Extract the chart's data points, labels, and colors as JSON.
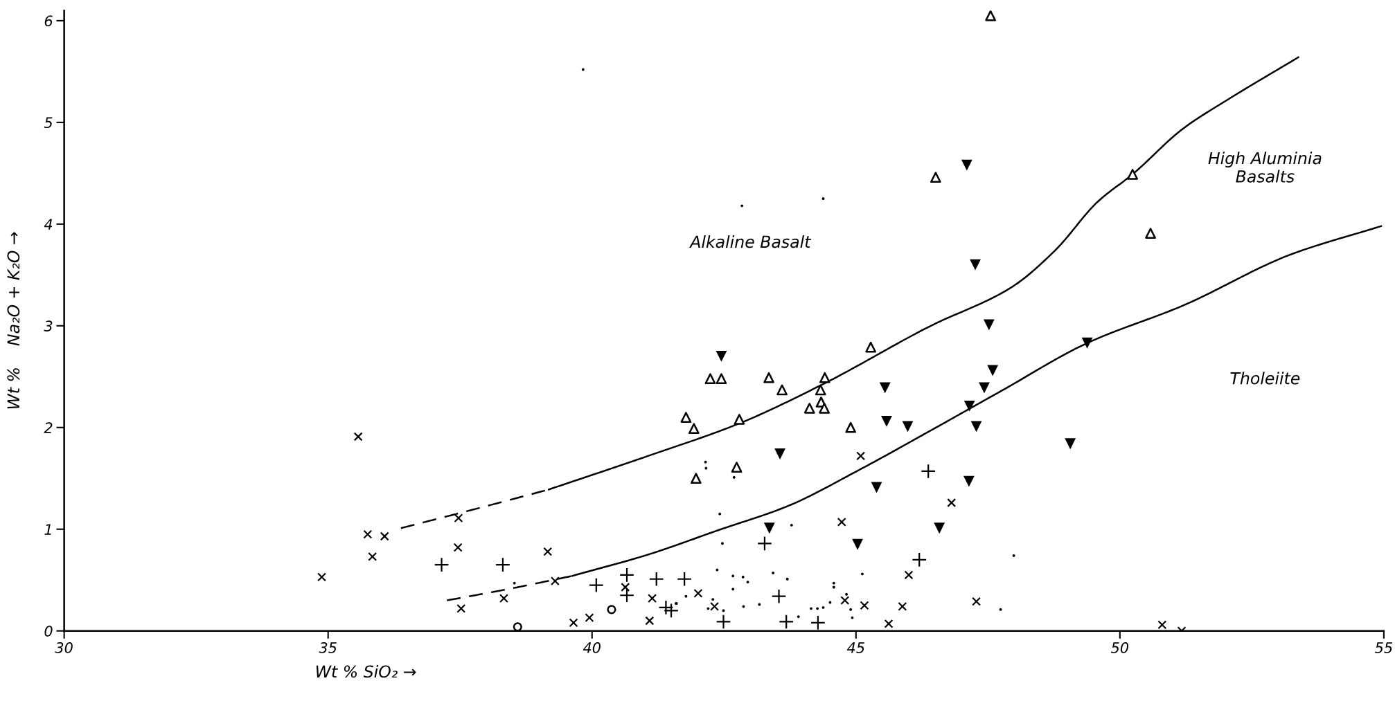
{
  "chart_data": {
    "type": "scatter",
    "xlabel": "Wt % SiO₂ →",
    "ylabel": "Wt %    Na₂O + K₂O →",
    "xlim": [
      30,
      55
    ],
    "ylim": [
      0,
      6.1
    ],
    "xticks": [
      30,
      35,
      40,
      45,
      50,
      55
    ],
    "yticks": [
      0,
      1,
      2,
      3,
      4,
      5,
      6
    ],
    "grid": false,
    "legend": false,
    "annotations": [
      "Alkaline Basalt",
      "High Aluminia\nBasalts",
      "Tholeiite"
    ],
    "series": [
      {
        "marker": "x",
        "color": "#000000",
        "x": [
          34.88,
          35.57,
          35.75,
          36.07,
          35.84,
          37.47,
          37.46,
          39.16,
          39.3,
          37.52,
          38.33,
          40.63,
          39.65,
          39.95,
          41.14,
          41.09,
          45.09,
          44.73,
          46.81,
          46.0,
          42.01,
          42.32,
          44.79,
          45.16,
          45.88,
          45.62,
          47.28,
          50.8,
          51.17
        ],
        "values": [
          0.53,
          1.91,
          0.95,
          0.93,
          0.73,
          1.11,
          0.82,
          0.78,
          0.49,
          0.22,
          0.32,
          0.43,
          0.08,
          0.13,
          0.32,
          0.1,
          1.72,
          1.07,
          1.26,
          0.55,
          0.37,
          0.24,
          0.3,
          0.25,
          0.24,
          0.07,
          0.29,
          0.06,
          0.0
        ]
      },
      {
        "marker": "cross",
        "color": "#000000",
        "x": [
          37.15,
          38.31,
          40.08,
          40.66,
          40.66,
          41.22,
          41.4,
          41.5,
          43.27,
          46.37,
          46.2,
          41.75,
          43.54,
          42.49,
          43.68,
          44.28
        ],
        "values": [
          0.65,
          0.65,
          0.45,
          0.55,
          0.35,
          0.51,
          0.23,
          0.2,
          0.86,
          1.57,
          0.7,
          0.51,
          0.34,
          0.09,
          0.09,
          0.08
        ]
      },
      {
        "marker": "point",
        "color": "#000000",
        "x": [
          38.53,
          41.6,
          42.15,
          42.16,
          42.69,
          42.42,
          42.47,
          43.78,
          42.37,
          42.67,
          42.86,
          42.95,
          43.43,
          43.7,
          42.67,
          41.78,
          41.59,
          42.29,
          42.2,
          42.49,
          42.87,
          43.17,
          43.91,
          44.15,
          44.27,
          44.38,
          44.51,
          44.58,
          44.58,
          44.82,
          44.9,
          44.93,
          45.12,
          39.83,
          42.84,
          44.38,
          47.99,
          47.74
        ],
        "values": [
          0.47,
          0.27,
          1.66,
          1.6,
          1.51,
          1.15,
          0.86,
          1.04,
          0.6,
          0.54,
          0.53,
          0.48,
          0.57,
          0.51,
          0.41,
          0.34,
          0.27,
          0.31,
          0.22,
          0.2,
          0.24,
          0.26,
          0.14,
          0.22,
          0.22,
          0.23,
          0.28,
          0.47,
          0.43,
          0.36,
          0.21,
          0.13,
          0.56,
          5.52,
          4.18,
          4.25,
          0.74,
          0.21
        ]
      },
      {
        "marker": "circle-open",
        "color": "#000000",
        "x": [
          38.59,
          40.37
        ],
        "values": [
          0.04,
          0.21
        ]
      },
      {
        "marker": "triangle-open",
        "color": "#000000",
        "x": [
          45.28,
          42.24,
          42.45,
          43.35,
          44.41,
          43.6,
          44.33,
          44.34,
          44.12,
          44.4,
          41.78,
          41.93,
          42.79,
          44.9,
          42.74,
          41.97,
          47.55,
          46.51,
          50.24,
          50.58
        ],
        "values": [
          2.79,
          2.48,
          2.48,
          2.49,
          2.49,
          2.37,
          2.37,
          2.25,
          2.19,
          2.19,
          2.1,
          1.99,
          2.08,
          2.0,
          1.61,
          1.5,
          6.05,
          4.46,
          4.49,
          3.91
        ]
      },
      {
        "marker": "triangle-down",
        "color": "#000000",
        "x": [
          42.45,
          45.55,
          45.58,
          45.98,
          47.59,
          47.43,
          47.15,
          47.28,
          43.56,
          45.39,
          47.14,
          43.36,
          45.03,
          46.58,
          47.1,
          47.26,
          47.52,
          49.38,
          49.06
        ],
        "values": [
          2.7,
          2.39,
          2.06,
          2.01,
          2.56,
          2.39,
          2.21,
          2.01,
          1.74,
          1.41,
          1.47,
          1.01,
          0.85,
          1.01,
          4.58,
          3.6,
          3.01,
          2.83,
          1.84
        ]
      },
      {
        "type": "line",
        "line_style": "dashed",
        "marker": "none",
        "color": "#000000",
        "x": [
          36.38,
          37.8,
          39.18
        ],
        "values": [
          1.01,
          1.2,
          1.39
        ]
      },
      {
        "type": "line",
        "line_style": "solid",
        "marker": "none",
        "color": "#000000",
        "x": [
          39.18,
          41.06,
          42.79,
          44.39,
          46.38,
          47.95,
          48.77,
          49.58,
          50.24,
          51.2,
          52.0,
          53.38
        ],
        "values": [
          1.39,
          1.72,
          2.04,
          2.43,
          2.99,
          3.38,
          3.74,
          4.22,
          4.49,
          4.94,
          5.21,
          5.64
        ]
      },
      {
        "type": "line",
        "line_style": "dashed",
        "marker": "none",
        "color": "#000000",
        "x": [
          37.25,
          38.4,
          39.62
        ],
        "values": [
          0.3,
          0.41,
          0.54
        ]
      },
      {
        "type": "line",
        "line_style": "solid",
        "marker": "none",
        "color": "#000000",
        "x": [
          39.62,
          41.06,
          42.39,
          43.72,
          45.05,
          46.38,
          47.72,
          49.38,
          51.2,
          53.23,
          54.95
        ],
        "values": [
          0.54,
          0.75,
          0.99,
          1.23,
          1.58,
          1.96,
          2.35,
          2.83,
          3.2,
          3.7,
          3.98
        ]
      }
    ]
  }
}
